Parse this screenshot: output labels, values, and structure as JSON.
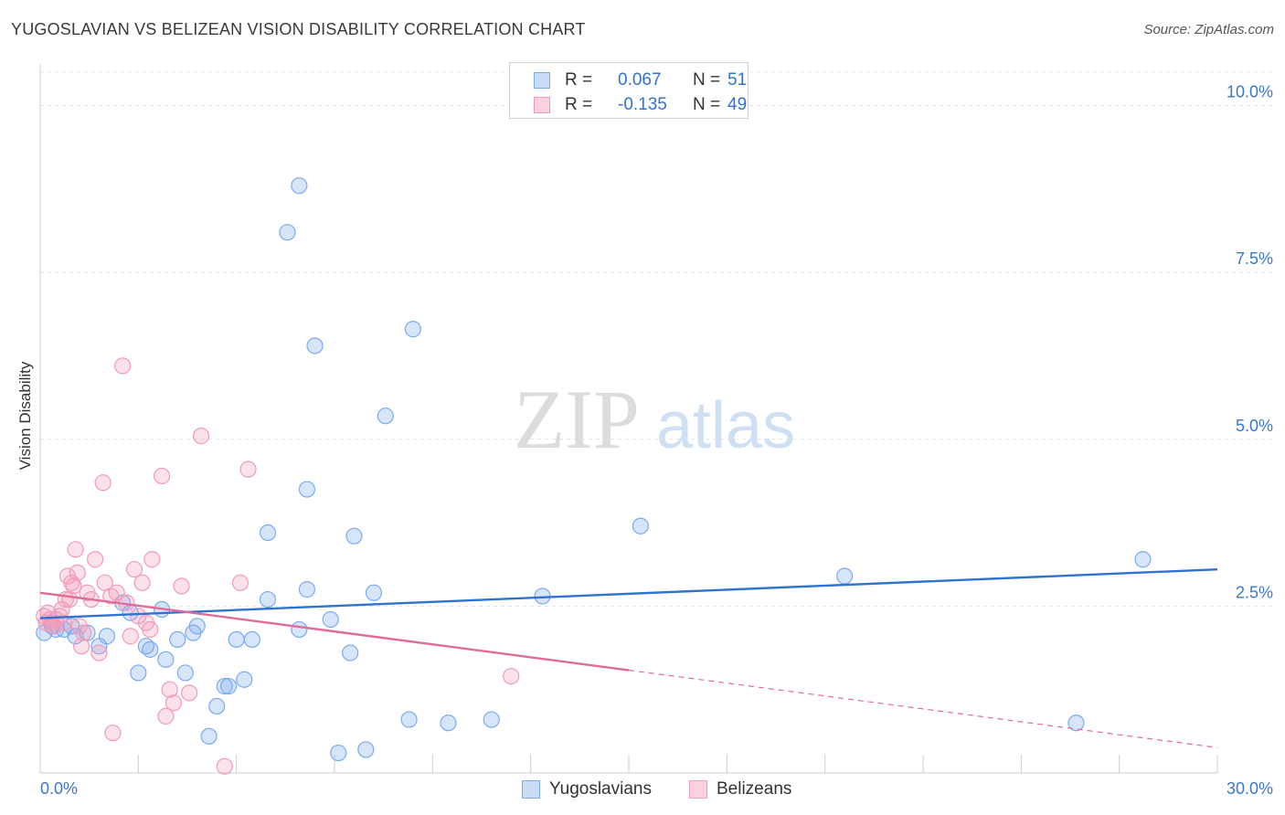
{
  "header": {
    "title": "YUGOSLAVIAN VS BELIZEAN VISION DISABILITY CORRELATION CHART",
    "source": "Source: ZipAtlas.com"
  },
  "watermark": {
    "zip": "ZIP",
    "atlas": "atlas"
  },
  "stats": [
    {
      "r_label": "R =",
      "r_value": "0.067",
      "n_label": "N =",
      "n_value": "51",
      "color": "#7aaaf0"
    },
    {
      "r_label": "R =",
      "r_value": "-0.135",
      "n_label": "N =",
      "n_value": "49",
      "color": "#f29ab8"
    }
  ],
  "chart_data": {
    "type": "scatter",
    "title": "YUGOSLAVIAN VS BELIZEAN VISION DISABILITY CORRELATION CHART",
    "xlabel": "",
    "ylabel": "Vision Disability",
    "xlim": [
      0,
      30
    ],
    "ylim": [
      0,
      10.5
    ],
    "x_tick_labels": [
      "0.0%",
      "30.0%"
    ],
    "y_ticks": [
      2.5,
      5.0,
      7.5,
      10.0
    ],
    "y_tick_labels": [
      "2.5%",
      "5.0%",
      "7.5%",
      "10.0%"
    ],
    "grid": true,
    "legend_position": "bottom-center",
    "series": [
      {
        "name": "Yugoslavians",
        "color": "#7aaaf0",
        "line_color": "#2f72d0",
        "trend": {
          "x": [
            0,
            30
          ],
          "y": [
            2.32,
            3.05
          ],
          "dashed_from": null
        },
        "points": [
          [
            0.1,
            2.1
          ],
          [
            0.3,
            2.2
          ],
          [
            0.4,
            2.15
          ],
          [
            0.6,
            2.15
          ],
          [
            0.8,
            2.2
          ],
          [
            0.9,
            2.05
          ],
          [
            1.2,
            2.1
          ],
          [
            1.5,
            1.9
          ],
          [
            1.7,
            2.05
          ],
          [
            2.1,
            2.55
          ],
          [
            2.3,
            2.4
          ],
          [
            2.5,
            1.5
          ],
          [
            2.7,
            1.9
          ],
          [
            2.8,
            1.85
          ],
          [
            3.1,
            2.45
          ],
          [
            3.2,
            1.7
          ],
          [
            3.5,
            2.0
          ],
          [
            3.7,
            1.5
          ],
          [
            3.9,
            2.1
          ],
          [
            4.0,
            2.2
          ],
          [
            4.3,
            0.55
          ],
          [
            4.5,
            1.0
          ],
          [
            4.7,
            1.3
          ],
          [
            4.8,
            1.3
          ],
          [
            5.0,
            2.0
          ],
          [
            5.2,
            1.4
          ],
          [
            5.4,
            2.0
          ],
          [
            5.8,
            3.6
          ],
          [
            5.8,
            2.6
          ],
          [
            6.3,
            8.1
          ],
          [
            6.6,
            2.15
          ],
          [
            6.6,
            8.8
          ],
          [
            6.8,
            4.25
          ],
          [
            6.8,
            2.75
          ],
          [
            7.0,
            6.4
          ],
          [
            7.4,
            2.3
          ],
          [
            7.6,
            0.3
          ],
          [
            7.9,
            1.8
          ],
          [
            8.0,
            3.55
          ],
          [
            8.3,
            0.35
          ],
          [
            8.5,
            2.7
          ],
          [
            8.8,
            5.35
          ],
          [
            9.4,
            0.8
          ],
          [
            9.5,
            6.65
          ],
          [
            10.4,
            0.75
          ],
          [
            11.5,
            0.8
          ],
          [
            12.8,
            2.65
          ],
          [
            15.3,
            3.7
          ],
          [
            20.5,
            2.95
          ],
          [
            26.4,
            0.75
          ],
          [
            28.1,
            3.2
          ]
        ]
      },
      {
        "name": "Belizeans",
        "color": "#f29ab8",
        "line_color": "#e06a98",
        "trend": {
          "x": [
            0,
            30
          ],
          "y": [
            2.7,
            0.38
          ],
          "dashed_from": 15
        },
        "points": [
          [
            0.1,
            2.35
          ],
          [
            0.15,
            2.25
          ],
          [
            0.2,
            2.4
          ],
          [
            0.25,
            2.3
          ],
          [
            0.3,
            2.25
          ],
          [
            0.35,
            2.2
          ],
          [
            0.4,
            2.3
          ],
          [
            0.5,
            2.35
          ],
          [
            0.55,
            2.45
          ],
          [
            0.6,
            2.25
          ],
          [
            0.65,
            2.6
          ],
          [
            0.7,
            2.95
          ],
          [
            0.75,
            2.6
          ],
          [
            0.8,
            2.85
          ],
          [
            0.85,
            2.8
          ],
          [
            0.9,
            3.35
          ],
          [
            0.95,
            3.0
          ],
          [
            1.0,
            2.2
          ],
          [
            1.05,
            1.9
          ],
          [
            1.1,
            2.1
          ],
          [
            1.2,
            2.7
          ],
          [
            1.3,
            2.6
          ],
          [
            1.4,
            3.2
          ],
          [
            1.5,
            1.8
          ],
          [
            1.6,
            4.35
          ],
          [
            1.65,
            2.85
          ],
          [
            1.8,
            2.65
          ],
          [
            1.85,
            0.6
          ],
          [
            1.95,
            2.7
          ],
          [
            2.1,
            6.1
          ],
          [
            2.2,
            2.55
          ],
          [
            2.3,
            2.05
          ],
          [
            2.4,
            3.05
          ],
          [
            2.5,
            2.35
          ],
          [
            2.6,
            2.85
          ],
          [
            2.7,
            2.25
          ],
          [
            2.8,
            2.15
          ],
          [
            2.85,
            3.2
          ],
          [
            3.1,
            4.45
          ],
          [
            3.2,
            0.85
          ],
          [
            3.3,
            1.25
          ],
          [
            3.4,
            1.05
          ],
          [
            3.6,
            2.8
          ],
          [
            3.8,
            1.2
          ],
          [
            4.1,
            5.05
          ],
          [
            4.7,
            0.1
          ],
          [
            5.1,
            2.85
          ],
          [
            5.3,
            4.55
          ],
          [
            12.0,
            1.45
          ]
        ]
      }
    ]
  }
}
